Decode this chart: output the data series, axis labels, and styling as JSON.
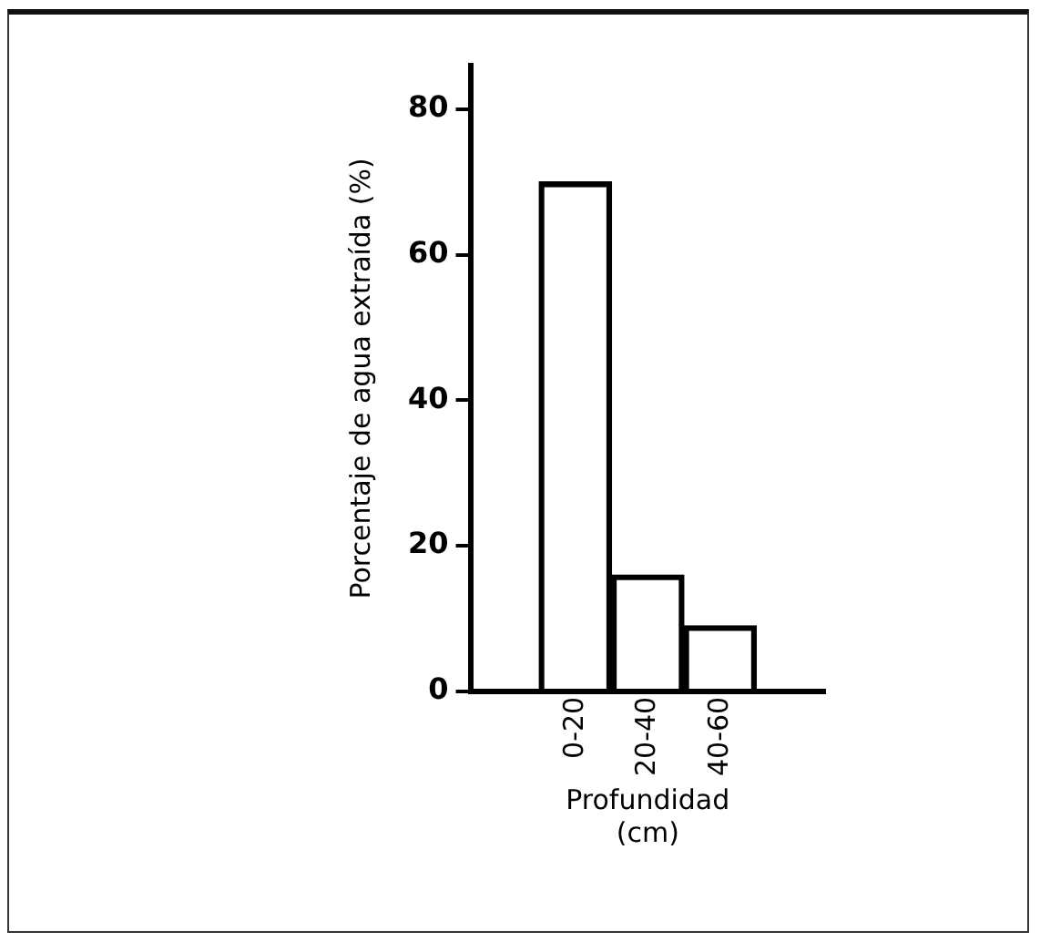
{
  "chart_data": {
    "type": "bar",
    "xlabel": "Profundidad\n(cm)",
    "ylabel": "Porcentaje de agua extraída (%)",
    "categories": [
      "0-20",
      "20-40",
      "40-60"
    ],
    "values": [
      70,
      16,
      9
    ],
    "color": "#000000",
    "ylim": [
      0,
      86
    ],
    "yticks": [
      0,
      20,
      40,
      60,
      80
    ],
    "grid": false,
    "legend": false
  }
}
